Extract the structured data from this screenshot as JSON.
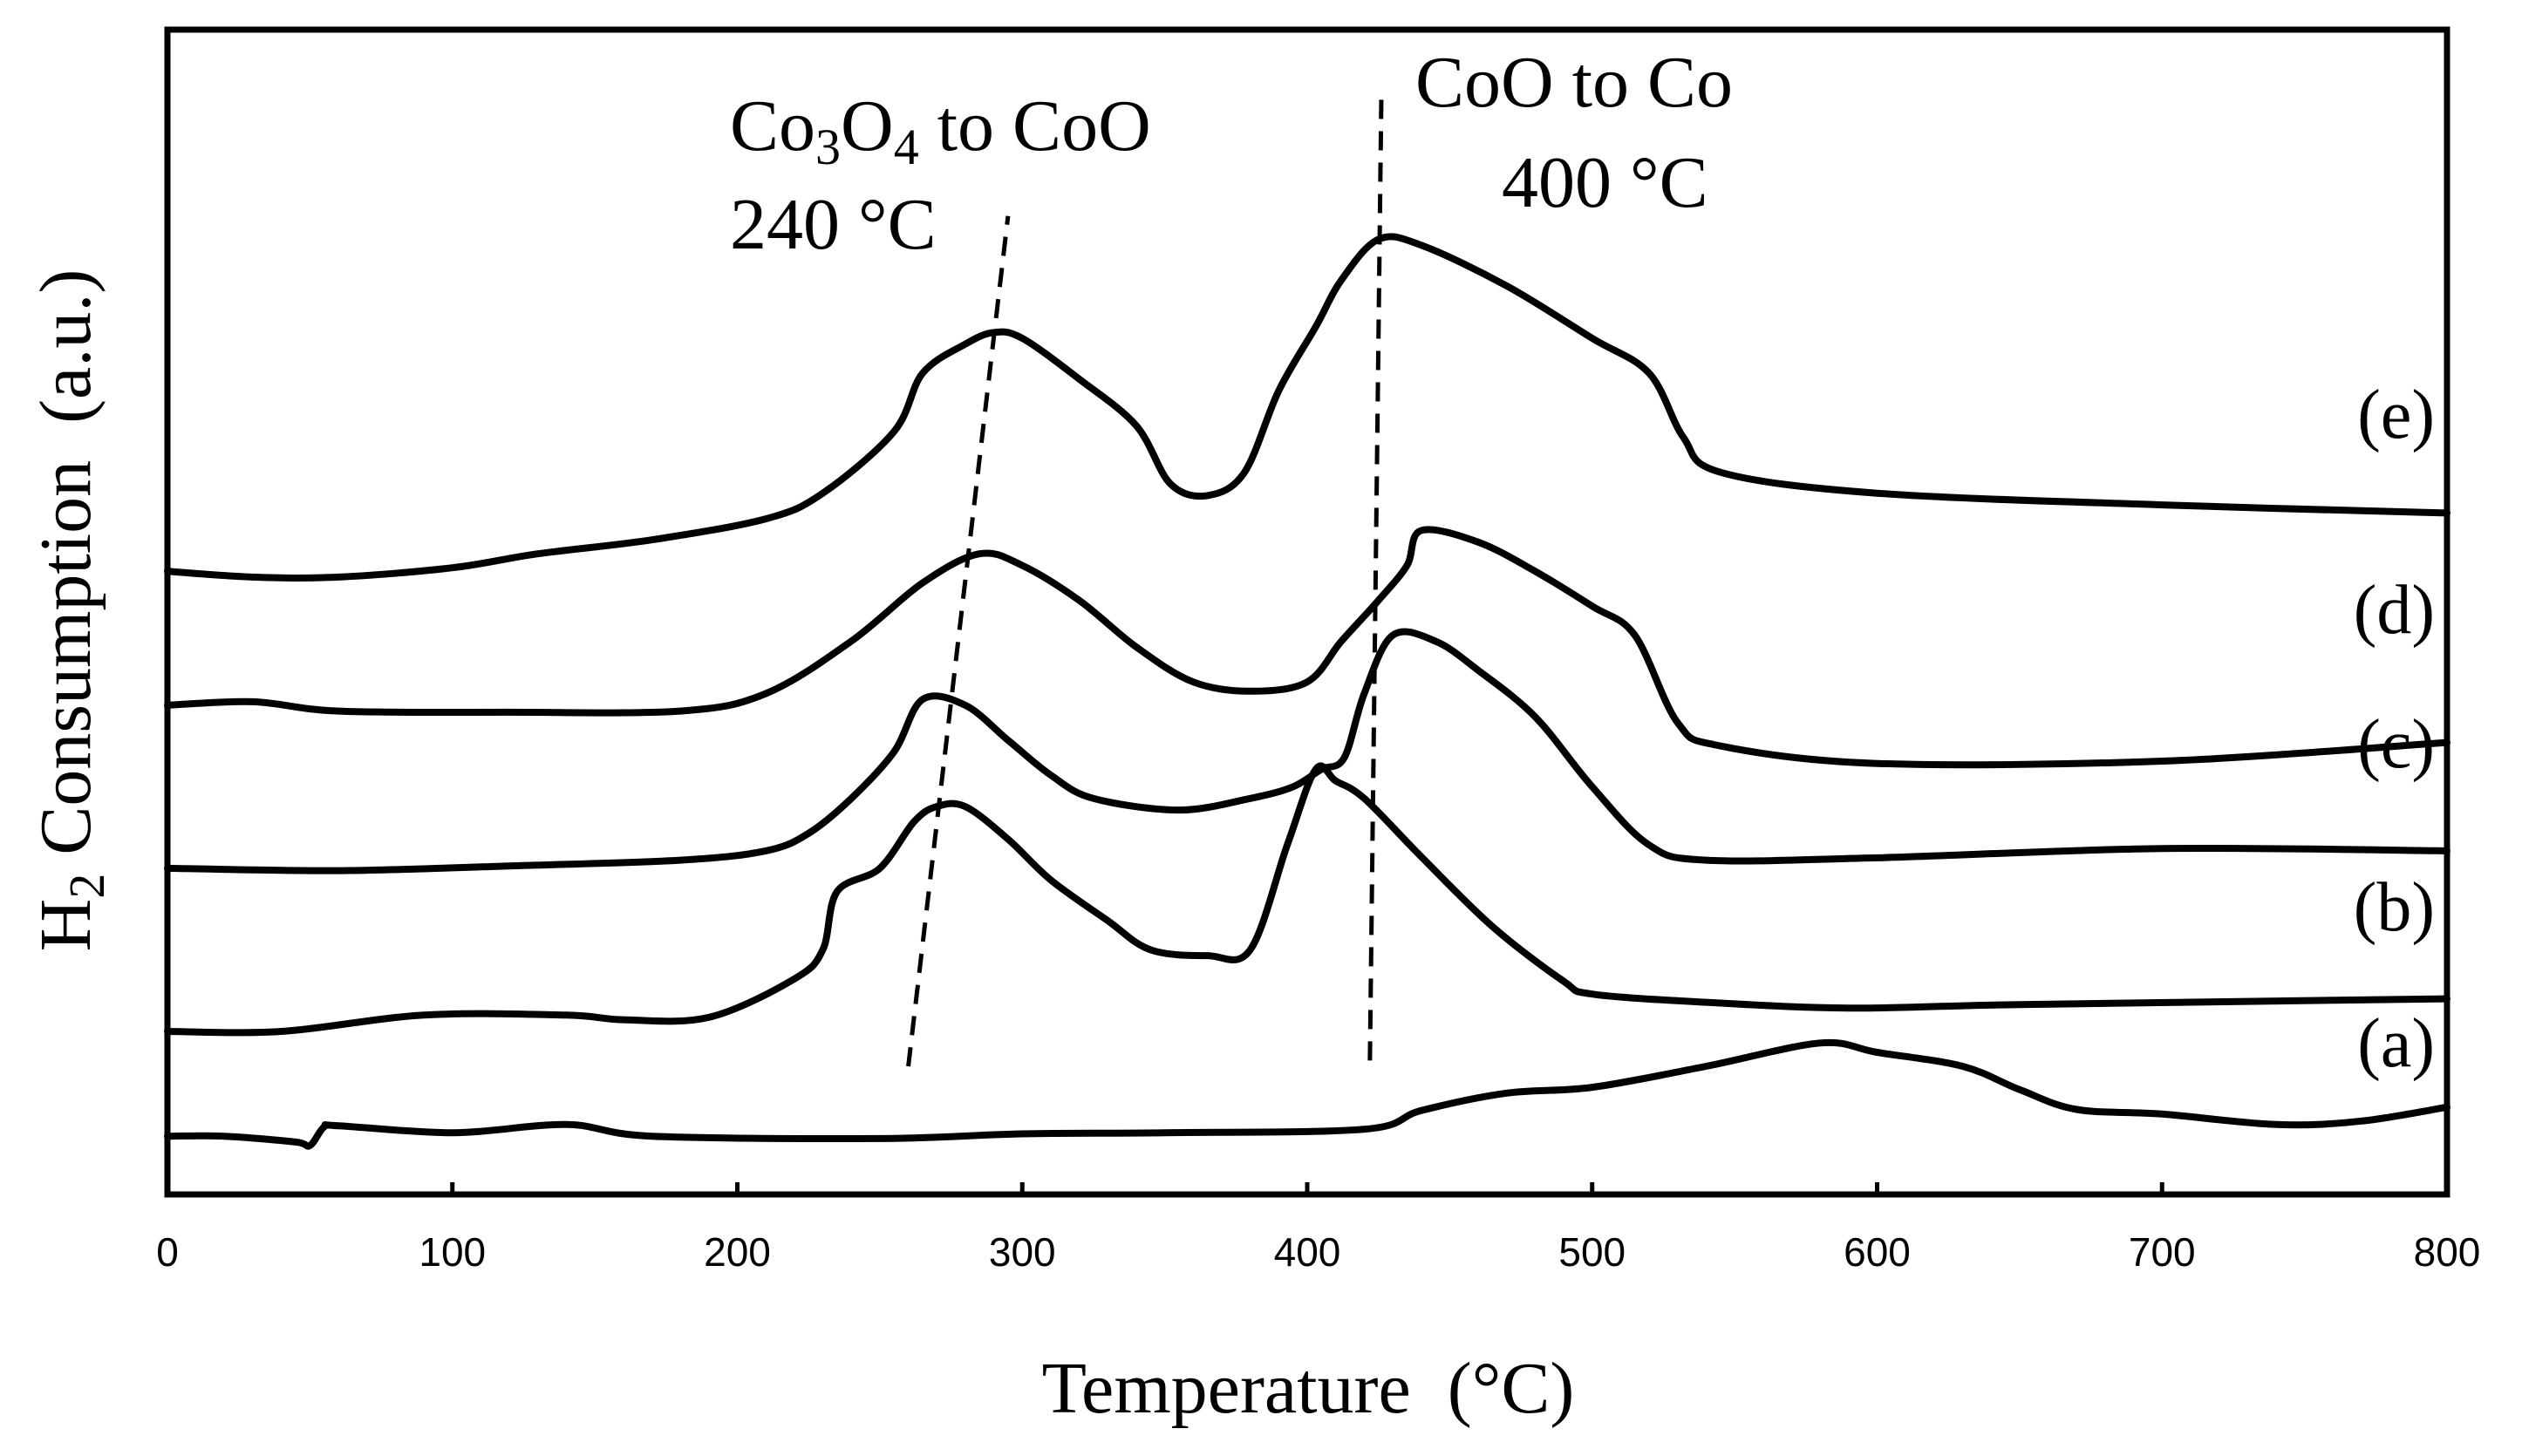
{
  "chart_data": {
    "type": "line",
    "title": "",
    "xlabel": "Temperature  (°C)",
    "ylabel_main": "H",
    "ylabel_sub": "2",
    "ylabel_rest": " Consumption  (a.u.)",
    "xlim": [
      0,
      800
    ],
    "ylim": [
      0,
      100
    ],
    "xticks": [
      0,
      100,
      200,
      300,
      400,
      500,
      600,
      700,
      800
    ],
    "xtick_labels": [
      "0",
      "100",
      "200",
      "300",
      "400",
      "500",
      "600",
      "700",
      "800"
    ],
    "grid": false,
    "units_note": "y values are arbitrary units (offset-stacked curves)",
    "series": [
      {
        "name": "(a)",
        "points": [
          [
            0,
            5
          ],
          [
            20,
            5
          ],
          [
            45,
            4.5
          ],
          [
            50,
            4.2
          ],
          [
            55,
            5.8
          ],
          [
            60,
            5.9
          ],
          [
            100,
            5.3
          ],
          [
            140,
            6
          ],
          [
            170,
            5
          ],
          [
            250,
            4.8
          ],
          [
            300,
            5.2
          ],
          [
            350,
            5.3
          ],
          [
            420,
            5.6
          ],
          [
            440,
            7.2
          ],
          [
            470,
            8.7
          ],
          [
            500,
            9.2
          ],
          [
            540,
            11
          ],
          [
            580,
            13
          ],
          [
            600,
            12.2
          ],
          [
            630,
            11
          ],
          [
            650,
            9
          ],
          [
            670,
            7.3
          ],
          [
            700,
            6.9
          ],
          [
            740,
            6
          ],
          [
            770,
            6.3
          ],
          [
            800,
            7.5
          ]
        ]
      },
      {
        "name": "(b)",
        "points": [
          [
            0,
            14
          ],
          [
            40,
            14
          ],
          [
            90,
            15.4
          ],
          [
            140,
            15.4
          ],
          [
            160,
            15
          ],
          [
            190,
            15.2
          ],
          [
            220,
            18.5
          ],
          [
            230,
            21
          ],
          [
            235,
            26
          ],
          [
            250,
            28
          ],
          [
            262,
            32
          ],
          [
            270,
            33.3
          ],
          [
            280,
            33.3
          ],
          [
            295,
            30.5
          ],
          [
            310,
            27
          ],
          [
            330,
            23.5
          ],
          [
            345,
            21
          ],
          [
            365,
            20.5
          ],
          [
            380,
            21
          ],
          [
            393,
            30
          ],
          [
            403,
            36.5
          ],
          [
            410,
            35.5
          ],
          [
            420,
            34
          ],
          [
            440,
            29
          ],
          [
            465,
            23
          ],
          [
            490,
            18.3
          ],
          [
            500,
            17.2
          ],
          [
            540,
            16.5
          ],
          [
            590,
            16
          ],
          [
            650,
            16.3
          ],
          [
            800,
            16.8
          ]
        ]
      },
      {
        "name": "(c)",
        "points": [
          [
            0,
            28
          ],
          [
            60,
            27.8
          ],
          [
            120,
            28.2
          ],
          [
            180,
            28.7
          ],
          [
            210,
            29.5
          ],
          [
            225,
            31
          ],
          [
            240,
            34
          ],
          [
            255,
            38
          ],
          [
            265,
            42.5
          ],
          [
            280,
            42
          ],
          [
            295,
            39
          ],
          [
            310,
            36
          ],
          [
            325,
            34
          ],
          [
            355,
            33
          ],
          [
            380,
            34
          ],
          [
            395,
            35
          ],
          [
            405,
            36.5
          ],
          [
            413,
            37.5
          ],
          [
            420,
            43
          ],
          [
            430,
            48
          ],
          [
            445,
            47.5
          ],
          [
            460,
            45
          ],
          [
            480,
            41
          ],
          [
            500,
            35
          ],
          [
            520,
            30
          ],
          [
            540,
            28.7
          ],
          [
            600,
            28.9
          ],
          [
            700,
            29.7
          ],
          [
            800,
            29.5
          ]
        ]
      },
      {
        "name": "(d)",
        "points": [
          [
            0,
            42
          ],
          [
            30,
            42.3
          ],
          [
            60,
            41.5
          ],
          [
            120,
            41.4
          ],
          [
            180,
            41.5
          ],
          [
            210,
            43
          ],
          [
            240,
            47.5
          ],
          [
            265,
            52.5
          ],
          [
            285,
            55
          ],
          [
            300,
            54
          ],
          [
            320,
            51
          ],
          [
            340,
            47
          ],
          [
            360,
            44
          ],
          [
            380,
            43.2
          ],
          [
            400,
            44
          ],
          [
            412,
            47.5
          ],
          [
            425,
            51
          ],
          [
            435,
            54
          ],
          [
            440,
            57
          ],
          [
            460,
            56
          ],
          [
            480,
            53.5
          ],
          [
            500,
            50.5
          ],
          [
            515,
            48
          ],
          [
            530,
            40.5
          ],
          [
            545,
            38.5
          ],
          [
            600,
            37
          ],
          [
            700,
            37.2
          ],
          [
            800,
            38.8
          ]
        ]
      },
      {
        "name": "(e)",
        "points": [
          [
            0,
            53.5
          ],
          [
            30,
            53
          ],
          [
            60,
            53
          ],
          [
            100,
            53.8
          ],
          [
            130,
            55
          ],
          [
            170,
            56.2
          ],
          [
            210,
            58
          ],
          [
            230,
            60.2
          ],
          [
            255,
            65.5
          ],
          [
            265,
            70.5
          ],
          [
            280,
            73
          ],
          [
            290,
            74
          ],
          [
            300,
            73.5
          ],
          [
            320,
            70
          ],
          [
            340,
            66
          ],
          [
            352,
            61
          ],
          [
            365,
            60
          ],
          [
            378,
            62
          ],
          [
            390,
            69
          ],
          [
            403,
            74.5
          ],
          [
            412,
            78.5
          ],
          [
            425,
            82
          ],
          [
            440,
            81.5
          ],
          [
            470,
            78
          ],
          [
            500,
            73.5
          ],
          [
            520,
            70.5
          ],
          [
            532,
            65
          ],
          [
            545,
            62
          ],
          [
            600,
            60.2
          ],
          [
            700,
            59.2
          ],
          [
            800,
            58.5
          ]
        ]
      }
    ],
    "reference_lines": [
      {
        "name": "Co3O4-to-CoO",
        "x1": 260,
        "y1": 11,
        "x2": 295,
        "y2": 84
      },
      {
        "name": "CoO-to-Co",
        "x1": 422,
        "y1": 11.5,
        "x2": 426,
        "y2": 94
      }
    ],
    "annotations": {
      "a1_co": "Co",
      "a1_sub3": "3",
      "a1_o": "O",
      "a1_sub4": "4",
      "a1_rest": " to CoO",
      "a1_temp": "240 °C",
      "a2_line1": "CoO to Co",
      "a2_temp": "400 °C"
    },
    "series_labels": [
      "(a)",
      "(b)",
      "(c)",
      "(d)",
      "(e)"
    ]
  },
  "colors": {
    "curve": "#000000",
    "axis": "#000000",
    "background": "#ffffff"
  }
}
